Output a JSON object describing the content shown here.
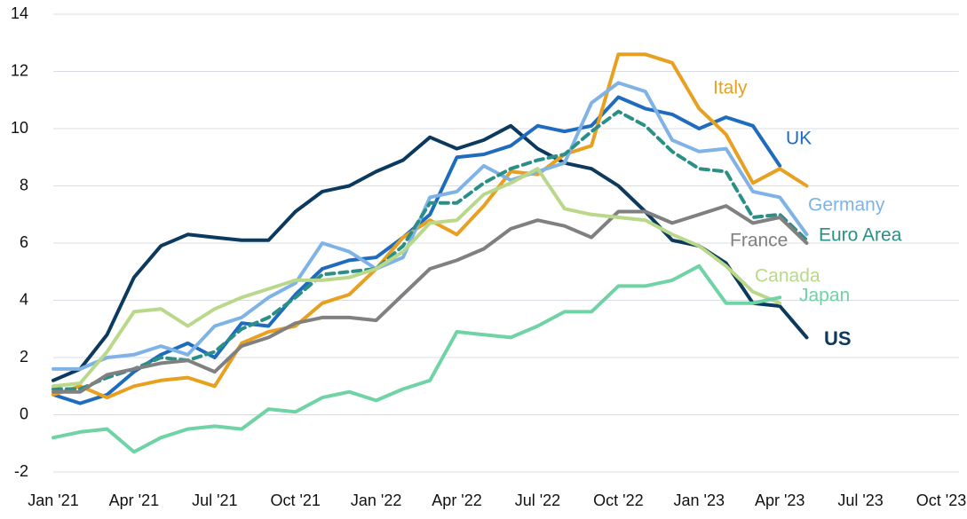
{
  "chart_data": {
    "type": "line",
    "categories": [
      "Jan '21",
      null,
      null,
      "Apr '21",
      null,
      null,
      "Jul '21",
      null,
      null,
      "Oct '21",
      null,
      null,
      "Jan '22",
      null,
      null,
      "Apr '22",
      null,
      null,
      "Jul '22",
      null,
      null,
      "Oct '22",
      null,
      null,
      "Jan '23",
      null,
      null,
      "Apr '23",
      null,
      null,
      "Jul '23",
      null,
      null,
      "Oct '23"
    ],
    "ylim": [
      -2,
      14
    ],
    "yticks": [
      -2,
      0,
      2,
      4,
      6,
      8,
      10,
      12,
      14
    ],
    "grid": true,
    "series": [
      {
        "name": "US",
        "color": "#0b3a5e",
        "values": [
          1.2,
          1.6,
          2.8,
          4.8,
          5.9,
          6.3,
          6.2,
          6.1,
          6.1,
          7.1,
          7.8,
          8.0,
          8.5,
          8.9,
          9.7,
          9.3,
          9.6,
          10.1,
          9.3,
          8.8,
          8.6,
          8.0,
          7.1,
          6.1,
          5.9,
          5.3,
          3.9,
          3.8,
          2.7,
          null,
          null,
          null,
          null,
          null
        ]
      },
      {
        "name": "UK",
        "color": "#1f6bbd",
        "values": [
          0.7,
          0.4,
          0.7,
          1.5,
          2.1,
          2.5,
          2.0,
          3.2,
          3.1,
          4.2,
          5.1,
          5.4,
          5.5,
          6.2,
          7.0,
          9.0,
          9.1,
          9.4,
          10.1,
          9.9,
          10.1,
          11.1,
          10.7,
          10.5,
          10.0,
          10.4,
          10.1,
          8.7,
          null,
          null,
          null,
          null,
          null,
          null
        ]
      },
      {
        "name": "Italy",
        "color": "#e8a021",
        "values": [
          0.7,
          1.0,
          0.6,
          1.0,
          1.2,
          1.3,
          1.0,
          2.5,
          2.9,
          3.1,
          3.9,
          4.2,
          5.1,
          6.2,
          6.8,
          6.3,
          7.3,
          8.5,
          8.4,
          9.1,
          9.4,
          12.6,
          12.6,
          12.3,
          10.7,
          9.8,
          8.1,
          8.6,
          8.0,
          null,
          null,
          null,
          null,
          null
        ]
      },
      {
        "name": "Germany",
        "color": "#7fb3e6",
        "values": [
          1.6,
          1.6,
          2.0,
          2.1,
          2.4,
          2.1,
          3.1,
          3.4,
          4.1,
          4.6,
          6.0,
          5.7,
          5.1,
          5.5,
          7.6,
          7.8,
          8.7,
          8.2,
          8.5,
          8.8,
          10.9,
          11.6,
          11.3,
          9.6,
          9.2,
          9.3,
          7.8,
          7.6,
          6.3,
          null,
          null,
          null,
          null,
          null
        ]
      },
      {
        "name": "Euro Area",
        "color": "#2a8f87",
        "dashed": true,
        "values": [
          0.9,
          0.9,
          1.3,
          1.6,
          2.0,
          1.9,
          2.2,
          3.0,
          3.4,
          4.1,
          4.9,
          5.0,
          5.1,
          5.9,
          7.4,
          7.4,
          8.1,
          8.6,
          8.9,
          9.1,
          9.9,
          10.6,
          10.1,
          9.2,
          8.6,
          8.5,
          6.9,
          7.0,
          6.1,
          null,
          null,
          null,
          null,
          null
        ]
      },
      {
        "name": "France",
        "color": "#808080",
        "values": [
          0.8,
          0.8,
          1.4,
          1.6,
          1.8,
          1.9,
          1.5,
          2.4,
          2.7,
          3.2,
          3.4,
          3.4,
          3.3,
          4.2,
          5.1,
          5.4,
          5.8,
          6.5,
          6.8,
          6.6,
          6.2,
          7.1,
          7.1,
          6.7,
          7.0,
          7.3,
          6.7,
          6.9,
          6.0,
          null,
          null,
          null,
          null,
          null
        ]
      },
      {
        "name": "Canada",
        "color": "#b9d88a",
        "values": [
          1.0,
          1.1,
          2.2,
          3.6,
          3.7,
          3.1,
          3.7,
          4.1,
          4.4,
          4.7,
          4.7,
          4.8,
          5.1,
          5.7,
          6.7,
          6.8,
          7.7,
          8.1,
          8.6,
          7.2,
          7.0,
          6.9,
          6.8,
          6.3,
          5.9,
          5.2,
          4.3,
          3.9,
          null,
          null,
          null,
          null,
          null,
          null
        ]
      },
      {
        "name": "Japan",
        "color": "#6fd3a6",
        "values": [
          -0.8,
          -0.6,
          -0.5,
          -1.3,
          -0.8,
          -0.5,
          -0.4,
          -0.5,
          0.2,
          0.1,
          0.6,
          0.8,
          0.5,
          0.9,
          1.2,
          2.9,
          2.8,
          2.7,
          3.1,
          3.6,
          3.6,
          4.5,
          4.5,
          4.7,
          5.2,
          3.9,
          3.9,
          4.1,
          null,
          null,
          null,
          null,
          null,
          null
        ]
      }
    ]
  }
}
